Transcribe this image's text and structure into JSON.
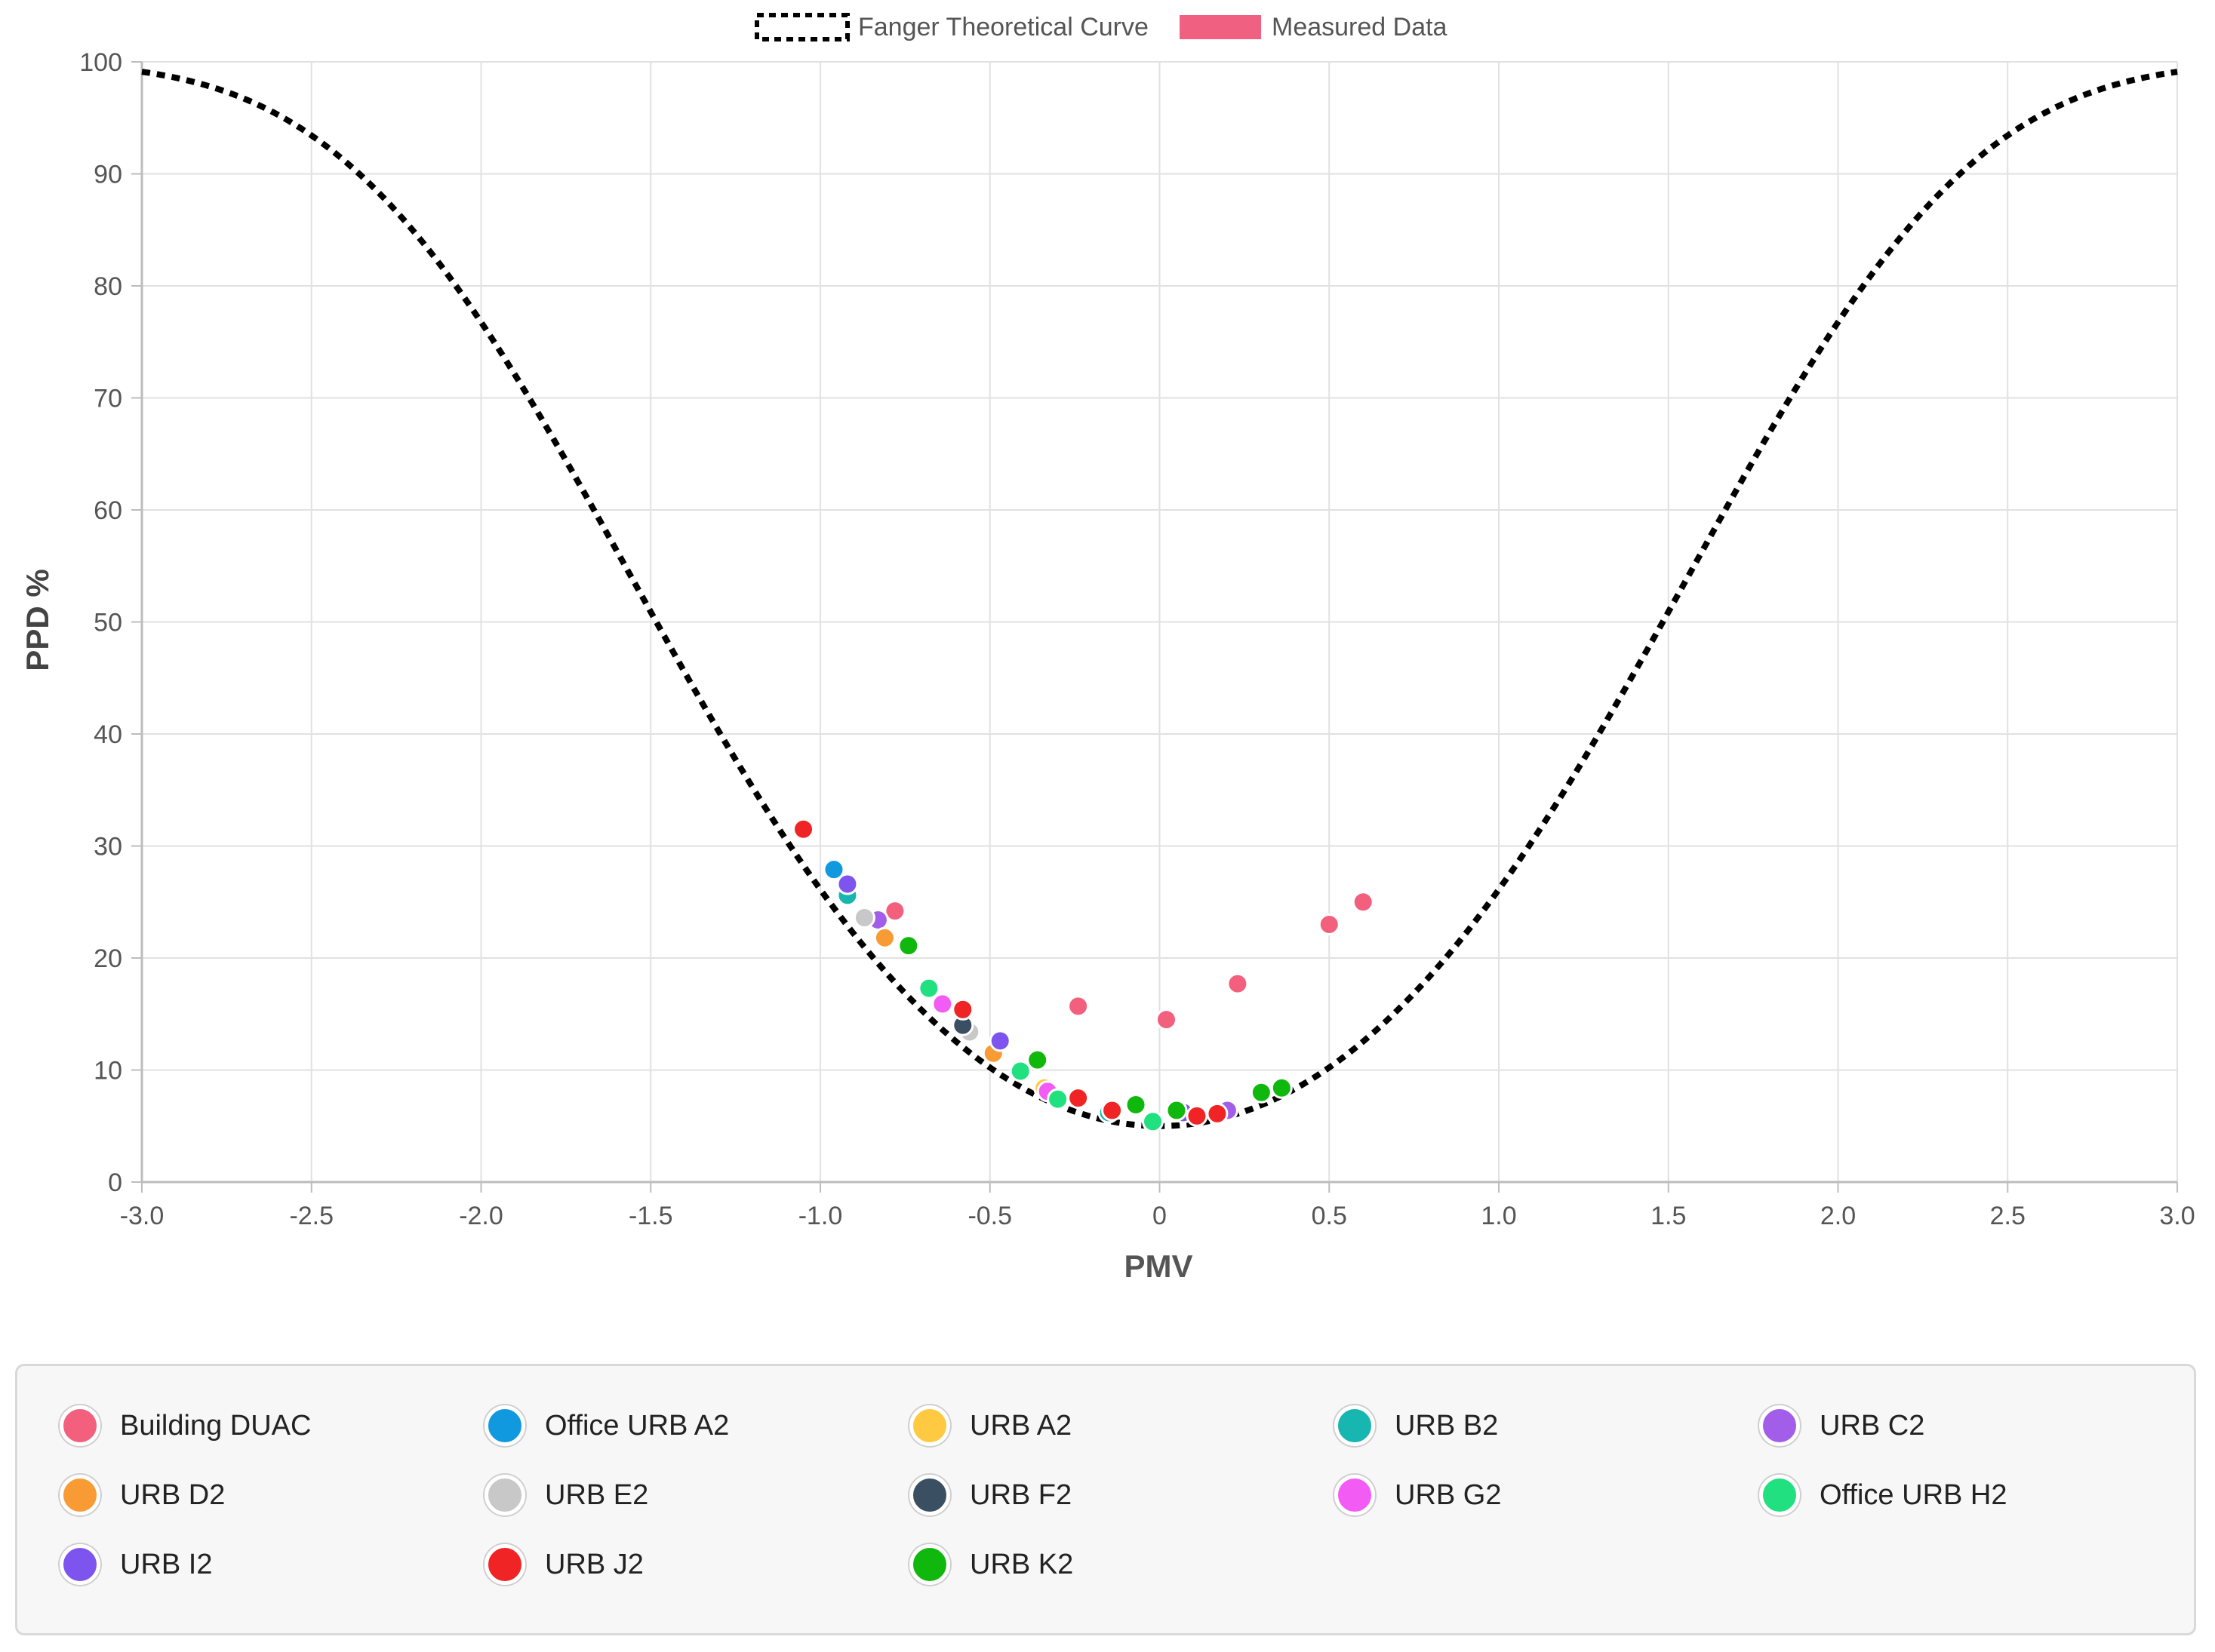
{
  "chart_data": {
    "type": "scatter",
    "xlabel": "PMV",
    "ylabel": "PPD %",
    "xlim": [
      -3.0,
      3.0
    ],
    "ylim": [
      0,
      100
    ],
    "x_ticks": [
      "-3.0",
      "-2.5",
      "-2.0",
      "-1.5",
      "-1.0",
      "-0.5",
      "0",
      "0.5",
      "1.0",
      "1.5",
      "2.0",
      "2.5",
      "3.0"
    ],
    "y_ticks": [
      "0",
      "10",
      "20",
      "30",
      "40",
      "50",
      "60",
      "70",
      "80",
      "90",
      "100"
    ],
    "grid": true,
    "top_legend": [
      {
        "label": "Fanger Theoretical Curve",
        "style": "dotted-line",
        "color": "#000000"
      },
      {
        "label": "Measured Data",
        "style": "box",
        "color": "#f06080"
      }
    ],
    "curve": {
      "name": "Fanger Theoretical Curve",
      "formula": "PPD = 100 - 95*exp(-0.03353*PMV^4 - 0.2179*PMV^2)",
      "x_range": [
        -3.0,
        3.0
      ]
    },
    "series": [
      {
        "name": "Building DUAC",
        "color": "#f2607e",
        "points": [
          [
            -0.78,
            24.2
          ],
          [
            -0.24,
            15.7
          ],
          [
            0.02,
            14.5
          ],
          [
            0.23,
            17.7
          ],
          [
            0.5,
            23.0
          ],
          [
            0.6,
            25.0
          ]
        ]
      },
      {
        "name": "Office URB A2",
        "color": "#1199e0",
        "points": [
          [
            -0.96,
            27.9
          ],
          [
            -0.92,
            26.0
          ]
        ]
      },
      {
        "name": "URB A2",
        "color": "#ffc942",
        "points": [
          [
            -0.34,
            8.4
          ]
        ]
      },
      {
        "name": "URB B2",
        "color": "#17b6b0",
        "points": [
          [
            -0.92,
            25.6
          ],
          [
            -0.15,
            6.2
          ]
        ]
      },
      {
        "name": "URB C2",
        "color": "#a25ee8",
        "points": [
          [
            -0.83,
            23.4
          ],
          [
            0.2,
            6.4
          ]
        ]
      },
      {
        "name": "URB D2",
        "color": "#f99b34",
        "points": [
          [
            -0.81,
            21.8
          ],
          [
            -0.49,
            11.5
          ]
        ]
      },
      {
        "name": "URB E2",
        "color": "#c8c8c8",
        "points": [
          [
            -0.87,
            23.6
          ],
          [
            -0.56,
            13.4
          ]
        ]
      },
      {
        "name": "URB F2",
        "color": "#3b4f62",
        "points": [
          [
            -0.58,
            14.0
          ]
        ]
      },
      {
        "name": "URB G2",
        "color": "#f25cf4",
        "points": [
          [
            -0.64,
            15.9
          ],
          [
            -0.33,
            8.1
          ]
        ]
      },
      {
        "name": "Office URB H2",
        "color": "#20e080",
        "points": [
          [
            -0.68,
            17.3
          ],
          [
            -0.41,
            9.9
          ],
          [
            -0.3,
            7.4
          ],
          [
            -0.02,
            5.4
          ]
        ]
      },
      {
        "name": "URB I2",
        "color": "#7d55ee",
        "points": [
          [
            -0.92,
            26.6
          ],
          [
            -0.47,
            12.6
          ],
          [
            0.07,
            6.2
          ]
        ]
      },
      {
        "name": "URB J2",
        "color": "#f02424",
        "points": [
          [
            -1.05,
            31.5
          ],
          [
            -0.58,
            15.4
          ],
          [
            -0.24,
            7.5
          ],
          [
            -0.14,
            6.4
          ],
          [
            0.11,
            5.9
          ],
          [
            0.17,
            6.1
          ]
        ]
      },
      {
        "name": "URB K2",
        "color": "#10b80e",
        "points": [
          [
            -0.74,
            21.1
          ],
          [
            -0.36,
            10.9
          ],
          [
            -0.07,
            6.9
          ],
          [
            0.05,
            6.4
          ],
          [
            0.3,
            8.0
          ],
          [
            0.36,
            8.4
          ]
        ]
      }
    ]
  }
}
